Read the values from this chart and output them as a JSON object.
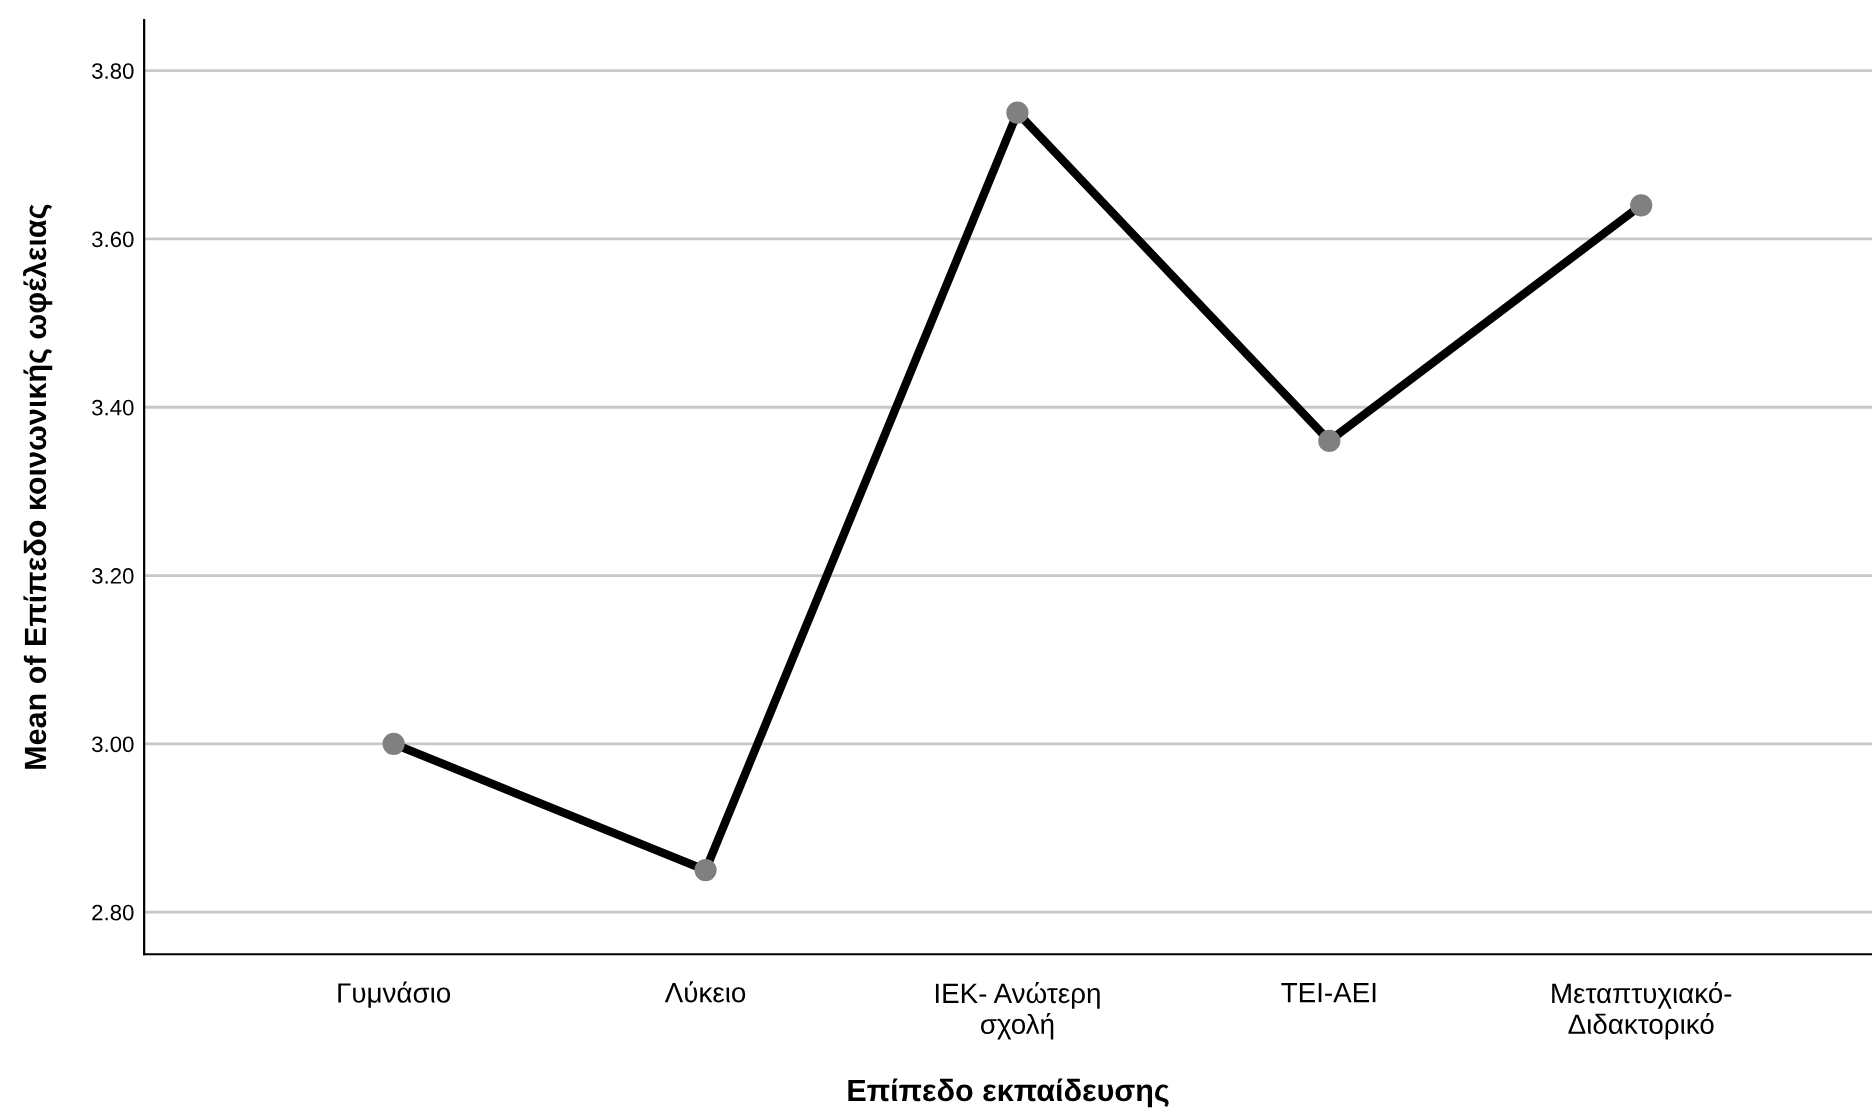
{
  "chart_data": {
    "type": "line",
    "xlabel": "Επίπεδο εκπαίδευσης",
    "ylabel": "Mean of Επίπεδο κοινωνικής ωφέλειας",
    "categories": [
      "Γυμνάσιο",
      "Λύκειο",
      "IEK- Ανώτερη\nσχολή",
      "TEI-AEI",
      "Μεταπτυχιακό-\nΔιδακτορικό"
    ],
    "series": [
      {
        "color": "#000000",
        "values": [
          3.0,
          2.85,
          3.75,
          3.36,
          3.64
        ]
      }
    ],
    "ylim": [
      2.75,
      3.86
    ],
    "yticks": [
      {
        "value": 2.8,
        "label": "2.80"
      },
      {
        "value": 3.0,
        "label": "3.00"
      },
      {
        "value": 3.2,
        "label": "3.20"
      },
      {
        "value": 3.4,
        "label": "3.40"
      },
      {
        "value": 3.6,
        "label": "3.60"
      },
      {
        "value": 3.8,
        "label": "3.80"
      }
    ],
    "grid": "y",
    "marker": "circle",
    "line_style": "solid"
  }
}
